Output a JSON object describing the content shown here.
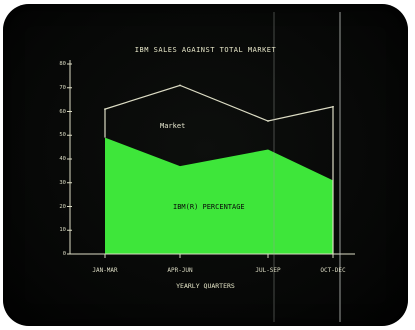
{
  "chart_data": {
    "type": "area",
    "title": "IBM SALES AGAINST TOTAL MARKET",
    "xlabel": "YEARLY QUARTERS",
    "ylabel": "",
    "categories": [
      "JAN-MAR",
      "APR-JUN",
      "JUL-SEP",
      "OCT-DEC"
    ],
    "y_ticks": [
      "0",
      "10",
      "20",
      "30",
      "40",
      "50",
      "60",
      "70",
      "80"
    ],
    "ylim": [
      0,
      80
    ],
    "grid": false,
    "series": [
      {
        "name": "Market",
        "values": [
          61,
          71,
          56,
          62
        ],
        "color": "#dcdcc4"
      },
      {
        "name": "IBM(R) PERCENTAGE",
        "values": [
          49,
          37,
          44,
          31
        ],
        "color": "#3ee63a"
      }
    ]
  },
  "colors": {
    "screen": "#070807",
    "text": "#e6e6c8",
    "market_line": "#dcdcc4",
    "share_fill": "#3ee63a"
  }
}
